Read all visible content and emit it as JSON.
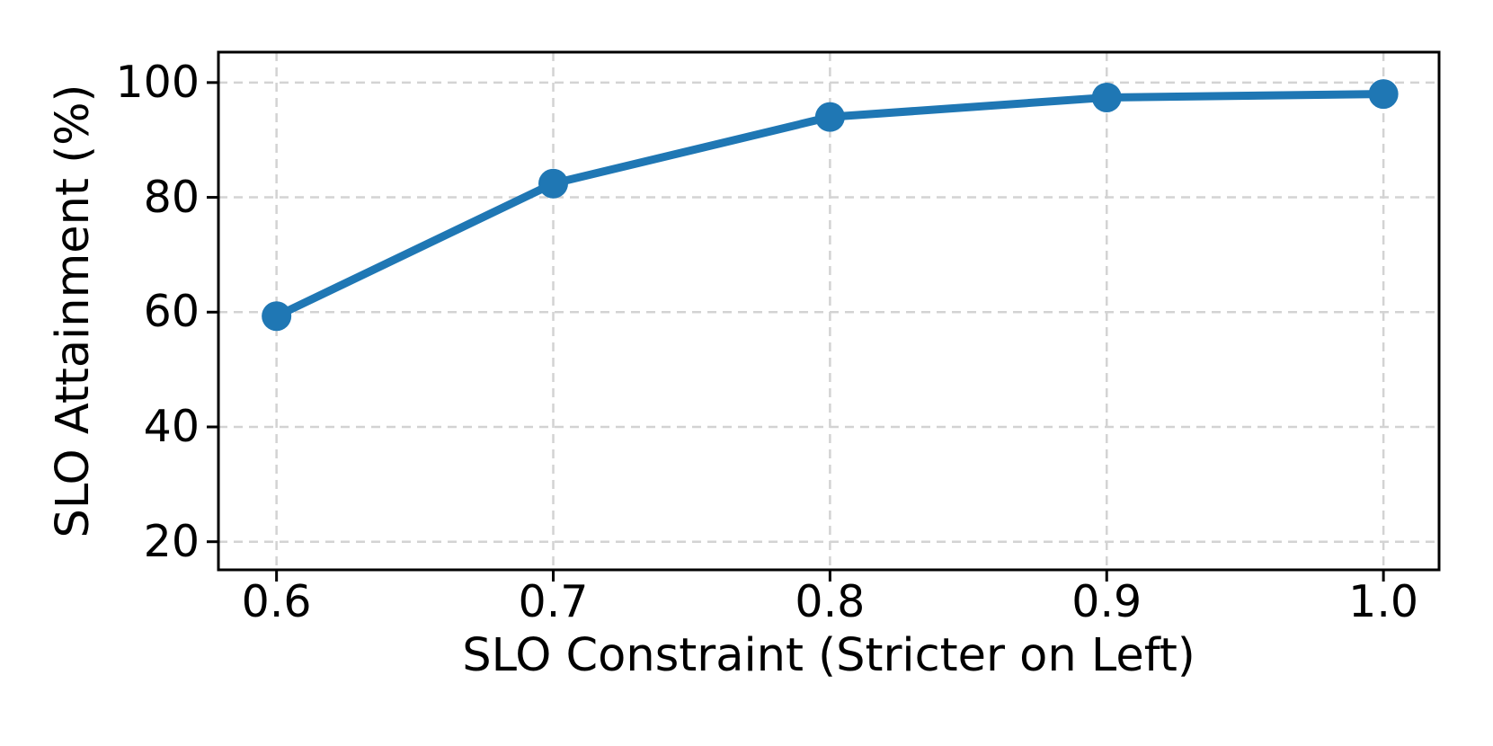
{
  "chart_data": {
    "type": "line",
    "title": "",
    "xlabel": "SLO Constraint (Stricter on Left)",
    "ylabel": "SLO Attainment (%)",
    "x": [
      0.6,
      0.7,
      0.8,
      0.9,
      1.0
    ],
    "series": [
      {
        "name": "SLO Attainment",
        "values": [
          59.3,
          82.4,
          94.0,
          97.4,
          98.0
        ]
      }
    ],
    "xticks": [
      0.6,
      0.7,
      0.8,
      0.9,
      1.0
    ],
    "xtick_labels": [
      "0.6",
      "0.7",
      "0.8",
      "0.9",
      "1.0"
    ],
    "yticks": [
      20,
      40,
      60,
      80,
      100
    ],
    "ytick_labels": [
      "20",
      "40",
      "60",
      "80",
      "100"
    ],
    "xlim": [
      0.579,
      1.0201
    ],
    "ylim": [
      15.1,
      105.3
    ],
    "grid": true,
    "grid_linestyle": "dashed",
    "legend_position": "none",
    "marker": "circle"
  },
  "colors": {
    "line": "#1f77b4",
    "marker": "#1f77b4",
    "grid": "#d3d3d3",
    "spine": "#000000",
    "text": "#000000",
    "background": "#ffffff"
  }
}
